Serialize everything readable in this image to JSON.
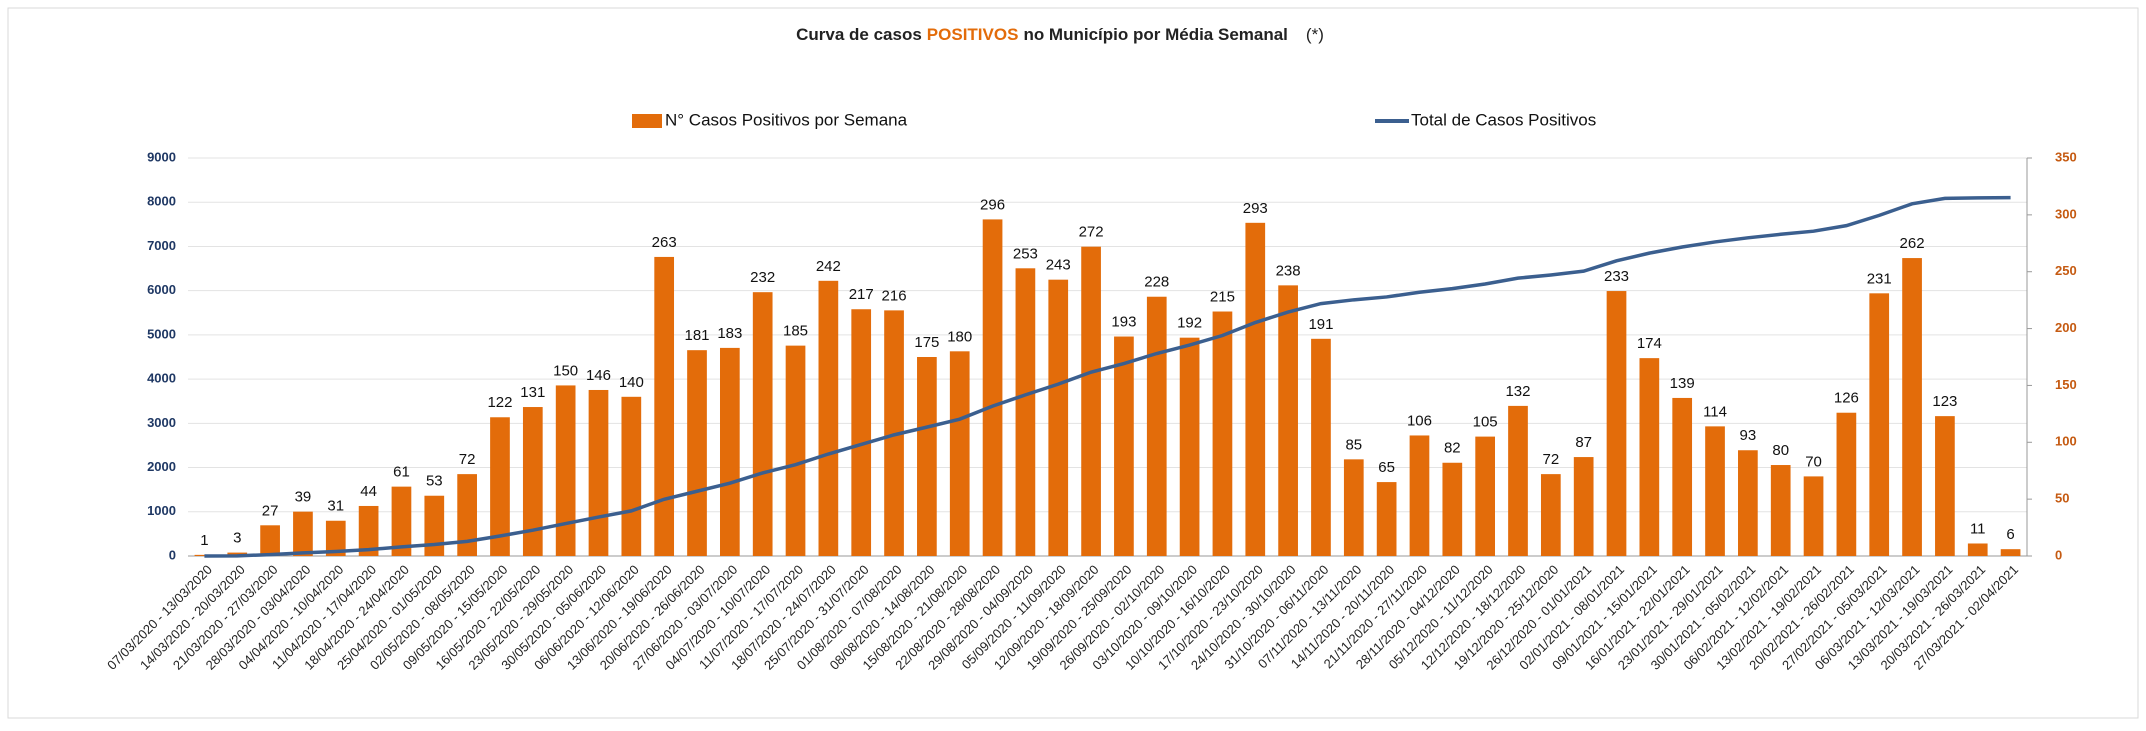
{
  "chart_data": {
    "type": "bar_line",
    "title": "Curva de casos",
    "title_highlight": "POSITIVOS",
    "title_rest": "no Município por Média Semanal",
    "title_note": "(*)",
    "categories": [
      "07/03/2020 - 13/03/2020",
      "14/03/2020 - 20/03/2020",
      "21/03/2020 - 27/03/2020",
      "28/03/2020 - 03/04/2020",
      "04/04/2020 - 10/04/2020",
      "11/04/2020 - 17/04/2020",
      "18/04/2020 - 24/04/2020",
      "25/04/2020 - 01/05/2020",
      "02/05/2020 - 08/05/2020",
      "09/05/2020 - 15/05/2020",
      "16/05/2020 - 22/05/2020",
      "23/05/2020 - 29/05/2020",
      "30/05/2020 - 05/06/2020",
      "06/06/2020 - 12/06/2020",
      "13/06/2020 - 19/06/2020",
      "20/06/2020 - 26/06/2020",
      "27/06/2020 - 03/07/2020",
      "04/07/2020 - 10/07/2020",
      "11/07/2020 - 17/07/2020",
      "18/07/2020 - 24/07/2020",
      "25/07/2020 - 31/07/2020",
      "01/08/2020 - 07/08/2020",
      "08/08/2020 - 14/08/2020",
      "15/08/2020 - 21/08/2020",
      "22/08/2020 - 28/08/2020",
      "29/08/2020 - 04/09/2020",
      "05/09/2020 - 11/09/2020",
      "12/09/2020 - 18/09/2020",
      "19/09/2020 - 25/09/2020",
      "26/09/2020 - 02/10/2020",
      "03/10/2020 - 09/10/2020",
      "10/10/2020 - 16/10/2020",
      "17/10/2020 - 23/10/2020",
      "24/10/2020 - 30/10/2020",
      "31/10/2020 - 06/11/2020",
      "07/11/2020 - 13/11/2020",
      "14/11/2020 - 20/11/2020",
      "21/11/2020 - 27/11/2020",
      "28/11/2020 - 04/12/2020",
      "05/12/2020 - 11/12/2020",
      "12/12/2020 - 18/12/2020",
      "19/12/2020 - 25/12/2020",
      "26/12/2020 - 01/01/2021",
      "02/01/2021 - 08/01/2021",
      "09/01/2021 - 15/01/2021",
      "16/01/2021 - 22/01/2021",
      "23/01/2021 - 29/01/2021",
      "30/01/2021 - 05/02/2021",
      "06/02/2021 - 12/02/2021",
      "13/02/2021 - 19/02/2021",
      "20/02/2021 - 26/02/2021",
      "27/02/2021 - 05/03/2021",
      "06/03/2021 - 12/03/2021",
      "13/03/2021 - 19/03/2021",
      "20/03/2021 - 26/03/2021",
      "27/03/2021 - 02/04/2021"
    ],
    "series": [
      {
        "name": "N° Casos Positivos por Semana",
        "type": "bar",
        "axis": "y2",
        "color": "#e36c0a",
        "values": [
          1,
          3,
          27,
          39,
          31,
          44,
          61,
          53,
          72,
          122,
          131,
          150,
          146,
          140,
          263,
          181,
          183,
          232,
          185,
          242,
          217,
          216,
          175,
          180,
          296,
          253,
          243,
          272,
          193,
          228,
          192,
          215,
          293,
          238,
          191,
          85,
          65,
          106,
          82,
          105,
          132,
          72,
          87,
          233,
          174,
          139,
          114,
          93,
          80,
          70,
          126,
          231,
          262,
          123,
          11,
          6
        ]
      },
      {
        "name": "Total de Casos Positivos",
        "type": "line",
        "axis": "y",
        "color": "#3b5f8f",
        "values": [
          1,
          4,
          31,
          70,
          101,
          145,
          206,
          259,
          331,
          453,
          584,
          734,
          880,
          1020,
          1283,
          1464,
          1647,
          1879,
          2064,
          2306,
          2523,
          2739,
          2914,
          3094,
          3390,
          3643,
          3886,
          4158,
          4351,
          4579,
          4771,
          4986,
          5279,
          5517,
          5708,
          5793,
          5858,
          5964,
          6046,
          6151,
          6283,
          6355,
          6442,
          6675,
          6849,
          6988,
          7102,
          7195,
          7275,
          7345,
          7471,
          7702,
          7964,
          8087,
          8098,
          8104
        ]
      }
    ],
    "ylim": [
      0,
      9000
    ],
    "yticks": [
      0,
      1000,
      2000,
      3000,
      4000,
      5000,
      6000,
      7000,
      8000,
      9000
    ],
    "y2lim": [
      0,
      350
    ],
    "y2ticks": [
      0,
      50,
      100,
      150,
      200,
      250,
      300,
      350
    ],
    "grid": true
  }
}
